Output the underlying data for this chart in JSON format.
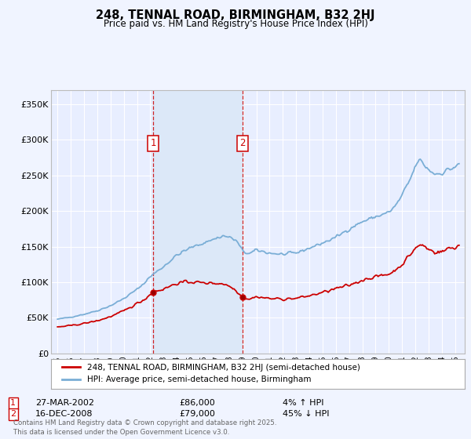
{
  "title": "248, TENNAL ROAD, BIRMINGHAM, B32 2HJ",
  "subtitle": "Price paid vs. HM Land Registry's House Price Index (HPI)",
  "legend_label_red": "248, TENNAL ROAD, BIRMINGHAM, B32 2HJ (semi-detached house)",
  "legend_label_blue": "HPI: Average price, semi-detached house, Birmingham",
  "footer": "Contains HM Land Registry data © Crown copyright and database right 2025.\nThis data is licensed under the Open Government Licence v3.0.",
  "annotation1_date": "27-MAR-2002",
  "annotation1_price": "£86,000",
  "annotation1_hpi": "4% ↑ HPI",
  "annotation2_date": "16-DEC-2008",
  "annotation2_price": "£79,000",
  "annotation2_hpi": "45% ↓ HPI",
  "vline1_x": 2002.23,
  "vline2_x": 2008.96,
  "ylim_min": 0,
  "ylim_max": 370000,
  "yticks": [
    0,
    50000,
    100000,
    150000,
    200000,
    250000,
    300000,
    350000
  ],
  "ytick_labels": [
    "£0",
    "£50K",
    "£100K",
    "£150K",
    "£200K",
    "£250K",
    "£300K",
    "£350K"
  ],
  "xlim_min": 1994.5,
  "xlim_max": 2025.7,
  "background_color": "#f0f4ff",
  "plot_bg_color": "#e8eeff",
  "red_color": "#cc0000",
  "blue_color": "#7aaed6",
  "vline_color": "#cc0000",
  "grid_color": "#ffffff",
  "span_color": "#dce8f8"
}
